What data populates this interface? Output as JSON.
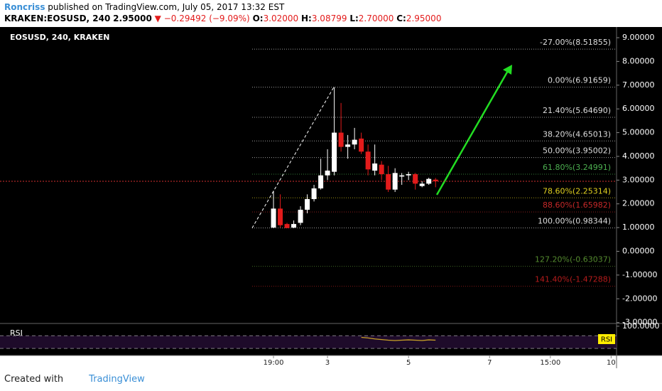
{
  "header": {
    "author": "Roncriss",
    "published": "published on TradingView.com, July 05, 2017 13:32 EST",
    "symbol": "KRAKEN:EOSUSD, 240",
    "last": "2.95000",
    "change": "▼ −0.29492 (−9.09%)",
    "o_label": "O:",
    "o": "3.02000",
    "h_label": "H:",
    "h": "3.08799",
    "l_label": "L:",
    "l": "2.70000",
    "c_label": "C:",
    "c": "2.95000"
  },
  "chart_data": {
    "type": "candlestick",
    "title": "EOSUSD, 240, KRAKEN",
    "x": [
      0,
      1,
      2,
      3,
      4,
      5,
      6,
      7,
      8,
      9,
      10,
      11,
      12,
      13,
      14,
      15,
      16,
      17,
      18,
      19,
      20,
      21,
      22,
      23,
      24
    ],
    "open": [
      1.0,
      1.8,
      1.15,
      1.0,
      1.2,
      1.75,
      2.2,
      2.65,
      3.2,
      3.35,
      5.0,
      4.4,
      4.5,
      4.75,
      4.2,
      3.4,
      3.65,
      3.25,
      2.6,
      3.15,
      3.2,
      3.25,
      2.75,
      2.85,
      3.02
    ],
    "high": [
      2.55,
      2.4,
      1.2,
      1.3,
      1.9,
      2.4,
      2.8,
      3.9,
      4.3,
      6.92,
      6.25,
      4.9,
      5.2,
      5.0,
      4.5,
      4.5,
      3.8,
      3.6,
      3.5,
      3.3,
      3.35,
      3.3,
      2.95,
      3.1,
      3.088
    ],
    "low": [
      0.98,
      1.0,
      0.98,
      0.98,
      1.1,
      1.6,
      2.1,
      2.6,
      3.0,
      3.2,
      4.2,
      3.9,
      4.3,
      4.1,
      3.2,
      3.2,
      3.0,
      2.5,
      2.5,
      2.8,
      3.0,
      2.6,
      2.7,
      2.8,
      2.7
    ],
    "close": [
      1.8,
      1.1,
      0.98,
      1.15,
      1.75,
      2.2,
      2.65,
      3.2,
      3.4,
      5.0,
      4.4,
      4.5,
      4.7,
      4.2,
      3.45,
      3.7,
      3.25,
      2.6,
      3.3,
      3.2,
      3.25,
      2.85,
      2.85,
      3.05,
      2.95
    ],
    "up_color": "#ffffff",
    "down_color": "#e31b1b",
    "xlim": [
      -40.5,
      50.8
    ],
    "xticks": [
      {
        "value": 0,
        "label": "19:00"
      },
      {
        "value": 8,
        "label": "3"
      },
      {
        "value": 20,
        "label": "5"
      },
      {
        "value": 32,
        "label": "7"
      },
      {
        "value": 41,
        "label": "15:00"
      },
      {
        "value": 50,
        "label": "10"
      }
    ],
    "ylim": [
      -3.04,
      9.45
    ],
    "yticks": [
      {
        "value": 9,
        "label": "9.00000"
      },
      {
        "value": 8,
        "label": "8.00000"
      },
      {
        "value": 7,
        "label": "7.00000"
      },
      {
        "value": 6,
        "label": "6.00000"
      },
      {
        "value": 5,
        "label": "5.00000"
      },
      {
        "value": 4,
        "label": "4.00000"
      },
      {
        "value": 3,
        "label": "3.00000"
      },
      {
        "value": 2,
        "label": "2.00000"
      },
      {
        "value": 1,
        "label": "1.00000"
      },
      {
        "value": 0,
        "label": "0.00000"
      },
      {
        "value": -1,
        "label": "-1.00000"
      },
      {
        "value": -2,
        "label": "-2.00000"
      },
      {
        "value": -3,
        "label": "-3.00000"
      }
    ],
    "current_price": 2.95,
    "current_price_color": "#d32f2f",
    "fib_levels": [
      {
        "label": "-27.00%(8.51855)",
        "value": 8.51855,
        "color": "#dddddd"
      },
      {
        "label": "0.00%(6.91659)",
        "value": 6.91659,
        "color": "#dddddd"
      },
      {
        "label": "21.40%(5.64690)",
        "value": 5.6469,
        "color": "#dddddd"
      },
      {
        "label": "38.20%(4.65013)",
        "value": 4.65013,
        "color": "#dddddd"
      },
      {
        "label": "50.00%(3.95002)",
        "value": 3.95002,
        "color": "#dddddd"
      },
      {
        "label": "61.80%(3.24991)",
        "value": 3.24991,
        "color": "#4caf50"
      },
      {
        "label": "78.60%(2.25314)",
        "value": 2.25314,
        "color": "#e0d020"
      },
      {
        "label": "88.60%(1.65982)",
        "value": 1.65982,
        "color": "#c62828"
      },
      {
        "label": "100.00%(0.98344)",
        "value": 0.98344,
        "color": "#dddddd"
      },
      {
        "label": "127.20%(-0.63037)",
        "value": -0.63037,
        "color": "#558b2f"
      },
      {
        "label": "141.40%(-1.47288)",
        "value": -1.47288,
        "color": "#b71c1c"
      }
    ],
    "rsi": {
      "title": "RSI",
      "badge": "RSI",
      "color": "#c9a227",
      "ylim": [
        8,
        108.6
      ],
      "yticks": [
        {
          "value": 100,
          "label": "100.0000"
        }
      ],
      "bands": [
        70,
        30
      ],
      "values": [
        null,
        null,
        null,
        null,
        null,
        null,
        null,
        null,
        null,
        null,
        null,
        null,
        null,
        65,
        63,
        60,
        58,
        56,
        55,
        56,
        57,
        56,
        55,
        57,
        56
      ]
    }
  },
  "footer": {
    "created": "Created with",
    "brand": "TradingView"
  }
}
